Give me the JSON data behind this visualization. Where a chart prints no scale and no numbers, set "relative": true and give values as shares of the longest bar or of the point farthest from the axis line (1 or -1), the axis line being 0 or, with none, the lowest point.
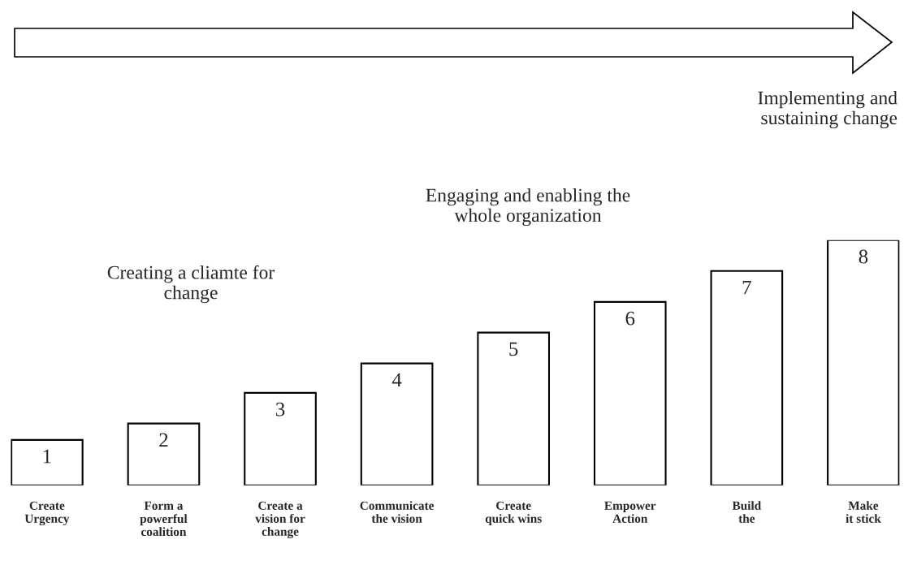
{
  "chart_data": {
    "type": "bar",
    "relative": true,
    "categories": [
      "Create\nUrgency",
      "Form a\npowerful\ncoalition",
      "Create a\nvision for\nchange",
      "Communicate\nthe vision",
      "Create\nquick wins",
      "Empower\nAction",
      "Build\nthe",
      "Make\nit stick"
    ],
    "values": [
      0.185,
      0.252,
      0.377,
      0.497,
      0.623,
      0.748,
      0.874,
      1
    ],
    "color": "#ffffff",
    "annotations": [
      "Implementing and\nsustaining change",
      "Engaging and enabling the\nwhole organization",
      "Creating a cliamte for\nchange",
      {
        "text": "1",
        "x": "Create\nUrgency",
        "y": 0.185
      },
      {
        "text": "2",
        "x": "Form a\npowerful\ncoalition",
        "y": 0.252
      },
      {
        "text": "3",
        "x": "Create a\nvision for\nchange",
        "y": 0.377
      },
      {
        "text": "4",
        "x": "Communicate\nthe vision",
        "y": 0.497
      },
      {
        "text": "5",
        "x": "Create\nquick wins",
        "y": 0.623
      },
      {
        "text": "6",
        "x": "Empower\nAction",
        "y": 0.748
      },
      {
        "text": "7",
        "x": "Build\nthe",
        "y": 0.874
      },
      {
        "text": "8",
        "x": "Make\nit stick",
        "y": 1
      }
    ],
    "grid": false
  }
}
